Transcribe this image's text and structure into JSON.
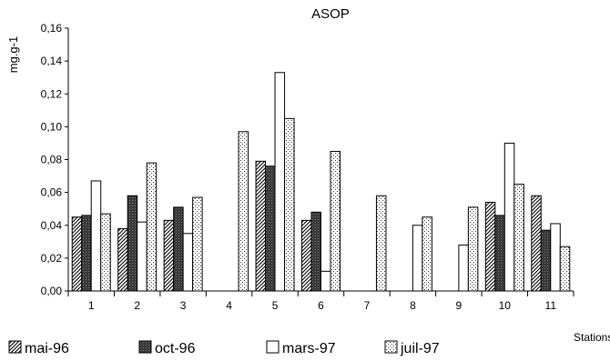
{
  "chart_data": {
    "type": "bar",
    "title": "ASOP",
    "ylabel": "mg.g-1",
    "xlabel": "Stations",
    "ylim": [
      0,
      0.16
    ],
    "yticks": [
      "0,00",
      "0,02",
      "0,04",
      "0,06",
      "0,08",
      "0,10",
      "0,12",
      "0,14",
      "0,16"
    ],
    "categories": [
      "1",
      "2",
      "3",
      "4",
      "5",
      "6",
      "7",
      "8",
      "9",
      "10",
      "11"
    ],
    "series": [
      {
        "name": "mai-96",
        "pattern": "diagonal",
        "values": [
          0.045,
          0.038,
          0.043,
          null,
          0.079,
          0.043,
          null,
          null,
          null,
          0.054,
          0.058
        ]
      },
      {
        "name": "oct-96",
        "pattern": "dark",
        "values": [
          0.046,
          0.058,
          0.051,
          null,
          0.076,
          0.048,
          null,
          null,
          null,
          0.046,
          0.037
        ]
      },
      {
        "name": "mars-97",
        "pattern": "white",
        "values": [
          0.067,
          0.042,
          0.035,
          null,
          0.133,
          0.012,
          null,
          0.04,
          0.028,
          0.09,
          0.041
        ]
      },
      {
        "name": "juil-97",
        "pattern": "dotted",
        "values": [
          0.047,
          0.078,
          0.057,
          0.097,
          0.105,
          0.085,
          0.058,
          0.045,
          0.051,
          0.065,
          0.027
        ]
      }
    ],
    "grid": false,
    "legend_position": "bottom"
  }
}
